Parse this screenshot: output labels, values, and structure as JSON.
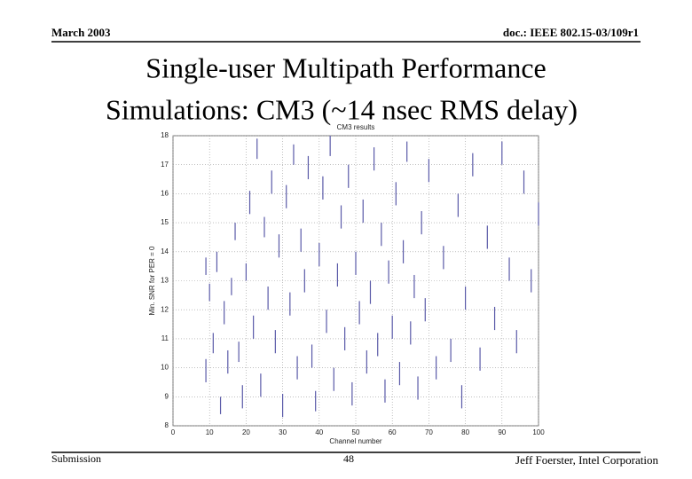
{
  "header": {
    "date": "March 2003",
    "doc": "doc.: IEEE 802.15-03/109r1"
  },
  "slide_title": [
    "Single-user Multipath Performance",
    "Simulations: CM3 (~14 nsec RMS delay)"
  ],
  "footer": {
    "left": "Submission",
    "page": "48",
    "right": "Jeff Foerster, Intel Corporation"
  },
  "chart_data": {
    "type": "range",
    "title": "CM3 results",
    "xlabel": "Channel number",
    "ylabel": "Min. SNR for PER = 0",
    "color": "#5a5aa8",
    "grid": true,
    "xlim": [
      0,
      100
    ],
    "xticks": [
      0,
      10,
      20,
      30,
      40,
      50,
      60,
      70,
      80,
      90,
      100
    ],
    "ylim": [
      8,
      18
    ],
    "yticks": [
      8,
      9,
      10,
      11,
      12,
      13,
      14,
      15,
      16,
      17,
      18
    ],
    "x": [
      9,
      9,
      10,
      11,
      12,
      13,
      14,
      15,
      16,
      17,
      18,
      19,
      20,
      21,
      22,
      23,
      24,
      25,
      26,
      27,
      28,
      29,
      30,
      31,
      32,
      33,
      34,
      35,
      36,
      37,
      38,
      39,
      40,
      41,
      42,
      43,
      44,
      45,
      46,
      47,
      48,
      49,
      50,
      51,
      52,
      53,
      54,
      55,
      56,
      57,
      58,
      59,
      60,
      61,
      62,
      63,
      64,
      65,
      66,
      67,
      68,
      69,
      70,
      72,
      74,
      76,
      78,
      79,
      80,
      82,
      84,
      86,
      88,
      90,
      92,
      94,
      96,
      98,
      100
    ],
    "low": [
      13.2,
      9.5,
      12.3,
      10.5,
      13.3,
      8.4,
      11.5,
      9.8,
      12.5,
      14.4,
      10.2,
      8.6,
      13.0,
      15.3,
      11.0,
      17.2,
      9.0,
      14.5,
      12.0,
      16.0,
      10.5,
      13.8,
      8.3,
      15.5,
      11.8,
      17.0,
      9.6,
      14.0,
      12.6,
      16.5,
      10.0,
      8.5,
      13.5,
      15.8,
      11.2,
      17.3,
      9.2,
      12.8,
      14.8,
      10.6,
      16.2,
      8.7,
      13.2,
      11.5,
      15.0,
      9.8,
      12.2,
      16.8,
      10.4,
      14.2,
      8.8,
      12.9,
      11.0,
      15.6,
      9.4,
      13.6,
      17.1,
      10.8,
      12.4,
      8.9,
      14.6,
      11.6,
      16.4,
      9.6,
      13.4,
      10.2,
      15.2,
      8.6,
      12.0,
      16.6,
      9.9,
      14.1,
      11.3,
      17.0,
      13.0,
      10.5,
      16.0,
      12.6,
      14.9
    ],
    "high": [
      13.8,
      10.3,
      12.9,
      11.2,
      14.0,
      9.0,
      12.3,
      10.6,
      13.1,
      15.0,
      10.9,
      9.4,
      13.6,
      16.1,
      11.8,
      17.9,
      9.8,
      15.2,
      12.8,
      16.8,
      11.3,
      14.6,
      9.1,
      16.3,
      12.6,
      17.7,
      10.4,
      14.8,
      13.4,
      17.3,
      10.8,
      9.2,
      14.3,
      16.6,
      12.0,
      18.0,
      10.0,
      13.6,
      15.6,
      11.4,
      17.0,
      9.5,
      14.0,
      12.3,
      15.8,
      10.6,
      13.0,
      17.6,
      11.2,
      15.0,
      9.6,
      13.7,
      11.8,
      16.4,
      10.2,
      14.4,
      17.8,
      11.6,
      13.2,
      9.7,
      15.4,
      12.4,
      17.2,
      10.4,
      14.2,
      11.0,
      16.0,
      9.4,
      12.8,
      17.4,
      10.7,
      14.9,
      12.1,
      17.8,
      13.8,
      11.3,
      16.8,
      13.4,
      15.7
    ]
  }
}
